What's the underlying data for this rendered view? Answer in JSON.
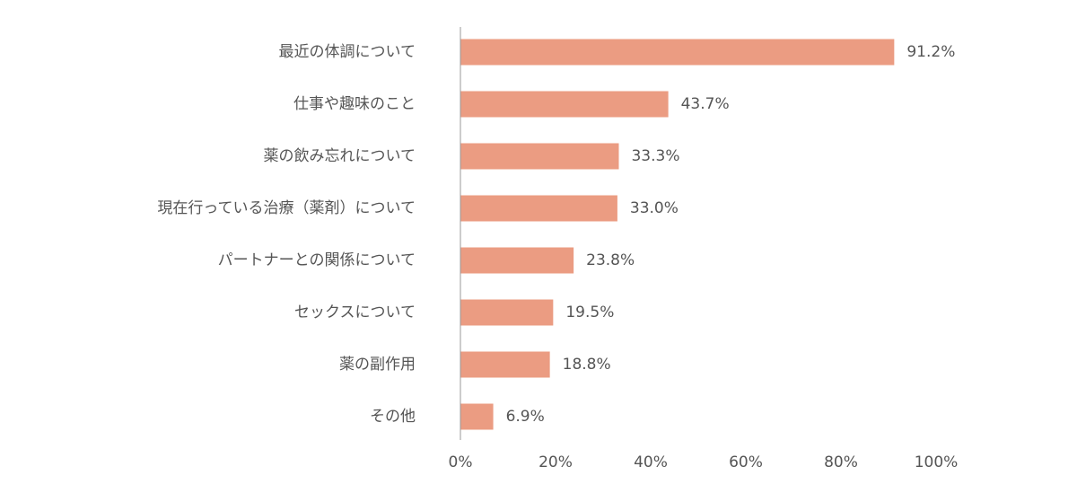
{
  "chart_data": {
    "type": "bar",
    "orientation": "horizontal",
    "categories": [
      "最近の体調について",
      "仕事や趣味のこと",
      "薬の飲み忘れについて",
      "現在行っている治療（薬剤）について",
      "パートナーとの関係について",
      "セックスについて",
      "薬の副作用",
      "その他"
    ],
    "values": [
      91.2,
      43.7,
      33.3,
      33.0,
      23.8,
      19.5,
      18.8,
      6.9
    ],
    "value_labels": [
      "91.2%",
      "43.7%",
      "33.3%",
      "33.0%",
      "23.8%",
      "19.5%",
      "18.8%",
      "6.9%"
    ],
    "xlim": [
      0,
      100
    ],
    "x_ticks": [
      0,
      20,
      40,
      60,
      80,
      100
    ],
    "x_tick_labels": [
      "0%",
      "20%",
      "40%",
      "60%",
      "80%",
      "100%"
    ],
    "grid": false,
    "bar_color": "#eb9c82",
    "axis_color": "#999999",
    "text_color": "#555555"
  }
}
